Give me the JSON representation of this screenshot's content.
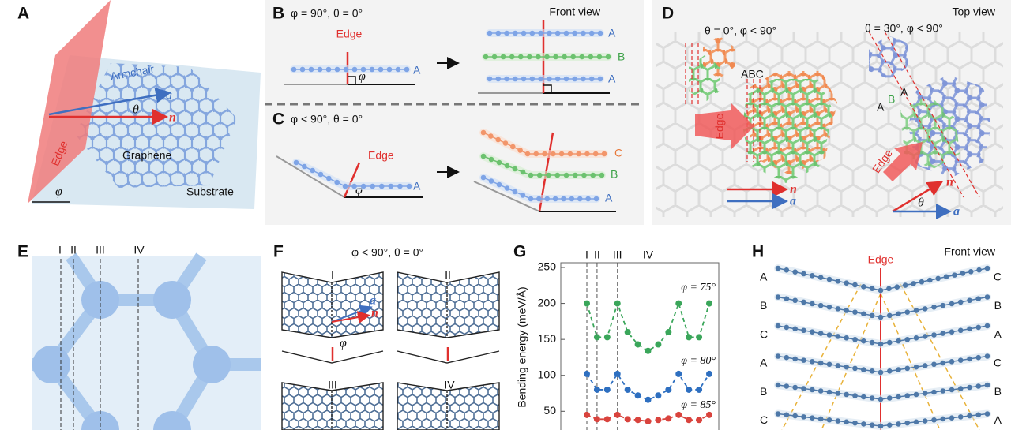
{
  "panel_a": {
    "label": "A",
    "armchair": "Armchair",
    "a": "a",
    "theta": "θ",
    "n": "n",
    "graphene": "Graphene",
    "edge": "Edge",
    "phi": "φ",
    "substrate": "Substrate"
  },
  "panel_b": {
    "label": "B",
    "condition": "φ = 90°, θ = 0°",
    "view": "Front view",
    "edge": "Edge",
    "layer_left": "A",
    "phi": "φ",
    "layers_right": [
      "A",
      "B",
      "A"
    ]
  },
  "panel_c": {
    "label": "C",
    "condition": "φ < 90°, θ = 0°",
    "edge": "Edge",
    "layer_left": "A",
    "phi": "φ",
    "layers_right": [
      "C",
      "B",
      "A"
    ]
  },
  "panel_d": {
    "label": "D",
    "view": "Top view",
    "left_condition": "θ = 0°, φ < 90°",
    "right_condition": "θ = 30°, φ < 90°",
    "stacking": "ABC",
    "edge_left": "Edge",
    "n_left": "n",
    "a_left": "a",
    "right_layers": [
      "A",
      "B",
      "A"
    ],
    "edge_right": "Edge",
    "n_right": "n",
    "theta": "θ",
    "a_right": "a"
  },
  "panel_e": {
    "label": "E",
    "lines": [
      "I",
      "II",
      "III",
      "IV"
    ]
  },
  "panel_f": {
    "label": "F",
    "condition": "φ < 90°, θ = 0°",
    "subpanels": [
      "I",
      "II",
      "III",
      "IV"
    ],
    "a": "a",
    "n": "n",
    "phi": "φ"
  },
  "chart_data": {
    "type": "line",
    "panel_label": "G",
    "y_label": "Bending energy (meV/Å)",
    "categories": [
      "I",
      "II",
      null,
      "III",
      null,
      null,
      "IV",
      null,
      null,
      null,
      null,
      null,
      null
    ],
    "ylim": [
      24,
      250
    ],
    "yticks": [
      50,
      100,
      150,
      200,
      250
    ],
    "series": [
      {
        "name": "φ = 75°",
        "color": "#3aa65a",
        "values": [
          200,
          153,
          153,
          200,
          160,
          143,
          134,
          143,
          160,
          200,
          153,
          153,
          200
        ]
      },
      {
        "name": "φ = 80°",
        "color": "#2e6fc0",
        "values": [
          102,
          80,
          80,
          102,
          80,
          72,
          66,
          72,
          80,
          102,
          80,
          80,
          102
        ]
      },
      {
        "name": "φ = 85°",
        "color": "#d9433d",
        "values": [
          45,
          39,
          39,
          45,
          39,
          38,
          36,
          38,
          40,
          45,
          38,
          38,
          45
        ]
      }
    ]
  },
  "panel_h": {
    "label": "H",
    "edge": "Edge",
    "view": "Front view",
    "left_layers": [
      "A",
      "B",
      "C",
      "A",
      "B",
      "C"
    ],
    "right_layers": [
      "C",
      "B",
      "A",
      "C",
      "B",
      "A"
    ]
  }
}
